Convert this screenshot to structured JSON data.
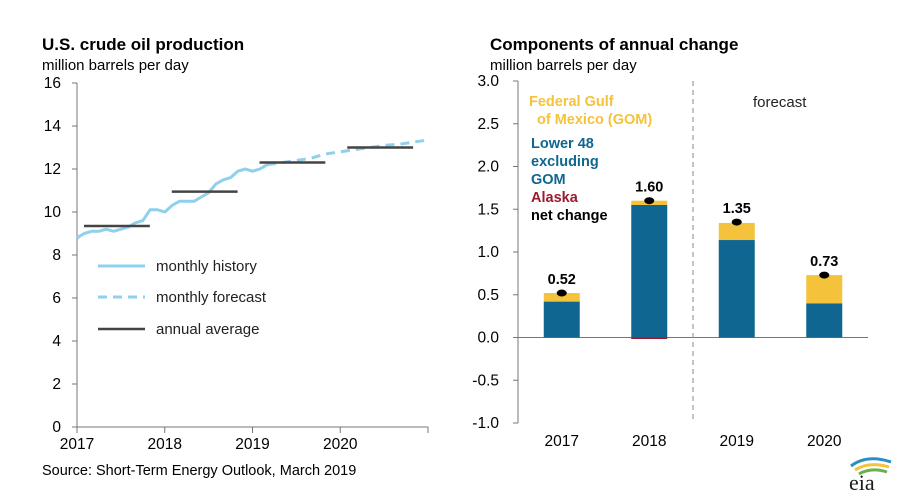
{
  "left_chart": {
    "title": "U.S. crude oil production",
    "subtitle": "million barrels per day"
  },
  "right_chart": {
    "title": "Components of annual change",
    "subtitle": "million barrels per day",
    "forecast_label": "forecast"
  },
  "source": "Source: Short-Term Energy Outlook, March 2019",
  "logo": "eia",
  "colors": {
    "history": "#8fd0ec",
    "annual": "#444444",
    "gom": "#f5c23b",
    "lower48": "#0f6691",
    "alaska": "#9b1a2f",
    "net": "#000000"
  },
  "chart_data": [
    {
      "type": "line",
      "title": "U.S. crude oil production",
      "ylabel": "million barrels per day",
      "ylim": [
        0,
        16
      ],
      "yticks": [
        "0",
        "2",
        "4",
        "6",
        "8",
        "10",
        "12",
        "14",
        "16"
      ],
      "xlim": [
        2017,
        2021
      ],
      "xticks": [
        "2017",
        "2018",
        "2019",
        "2020"
      ],
      "grid": false,
      "series": [
        {
          "name": "monthly history",
          "style": "solid",
          "x": [
            2017.0,
            2017.083,
            2017.167,
            2017.25,
            2017.333,
            2017.417,
            2017.5,
            2017.583,
            2017.667,
            2017.75,
            2017.833,
            2017.917,
            2018.0,
            2018.083,
            2018.167,
            2018.25,
            2018.333,
            2018.417,
            2018.5,
            2018.583,
            2018.667,
            2018.75,
            2018.833,
            2018.917,
            2019.0,
            2019.083,
            2019.167
          ],
          "y": [
            8.8,
            9.0,
            9.1,
            9.1,
            9.2,
            9.1,
            9.2,
            9.3,
            9.5,
            9.6,
            10.1,
            10.1,
            10.0,
            10.3,
            10.5,
            10.5,
            10.5,
            10.7,
            10.9,
            11.3,
            11.5,
            11.6,
            11.9,
            12.0,
            11.9,
            12.0,
            12.2
          ]
        },
        {
          "name": "monthly forecast",
          "style": "dashed",
          "x": [
            2019.167,
            2019.333,
            2019.5,
            2019.667,
            2019.833,
            2020.0,
            2020.167,
            2020.333,
            2020.5,
            2020.667,
            2020.833,
            2021.0
          ],
          "y": [
            12.2,
            12.3,
            12.4,
            12.5,
            12.7,
            12.8,
            12.9,
            13.0,
            13.1,
            13.15,
            13.25,
            13.35
          ]
        },
        {
          "name": "annual average",
          "style": "segment",
          "segments": [
            {
              "year": 2017,
              "x": [
                2017.08,
                2017.83
              ],
              "y": 9.35
            },
            {
              "year": 2018,
              "x": [
                2018.08,
                2018.83
              ],
              "y": 10.95
            },
            {
              "year": 2019,
              "x": [
                2019.08,
                2019.83
              ],
              "y": 12.3
            },
            {
              "year": 2020,
              "x": [
                2020.08,
                2020.83
              ],
              "y": 13.0
            }
          ]
        }
      ],
      "legend_position": "lower-left"
    },
    {
      "type": "bar",
      "stacked": true,
      "title": "Components of annual change",
      "ylabel": "million barrels per day",
      "ylim": [
        -1.0,
        3.0
      ],
      "yticks": [
        "-1.0",
        "-0.5",
        "0.0",
        "0.5",
        "1.0",
        "1.5",
        "2.0",
        "2.5",
        "3.0"
      ],
      "categories": [
        "2017",
        "2018",
        "2019",
        "2020"
      ],
      "forecast_start_index": 2,
      "series": [
        {
          "name": "Federal Gulf of Mexico (GOM)",
          "values": [
            0.1,
            0.05,
            0.2,
            0.33
          ]
        },
        {
          "name": "Lower 48 excluding GOM",
          "values": [
            0.42,
            1.55,
            1.14,
            0.4
          ]
        },
        {
          "name": "Alaska",
          "values": [
            0.0,
            -0.01,
            0.0,
            0.0
          ]
        }
      ],
      "net_change": {
        "name": "net change",
        "values": [
          0.52,
          1.6,
          1.35,
          0.73
        ],
        "labels": [
          "0.52",
          "1.60",
          "1.35",
          "0.73"
        ]
      },
      "legend_position": "top-left",
      "legend_lines": [
        [
          "Federal Gulf",
          "of Mexico (GOM)"
        ],
        [
          "Lower 48",
          "excluding",
          "GOM"
        ],
        [
          "Alaska"
        ],
        [
          "net change"
        ]
      ]
    }
  ]
}
